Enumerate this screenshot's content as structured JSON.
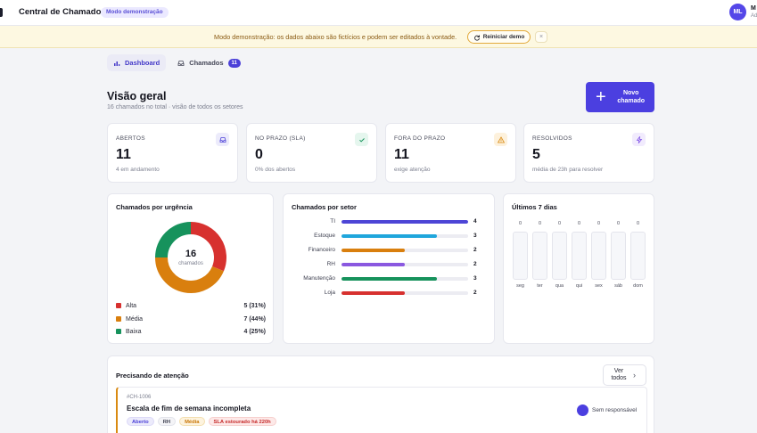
{
  "header": {
    "app_title": "Central de Chamados",
    "demo_badge": "Modo demonstração",
    "user_initials": "ML",
    "user_name": "M",
    "user_role": "Ad"
  },
  "banner": {
    "text": "Modo demonstração: os dados abaixo são fictícios e podem ser editados à vontade.",
    "reset_button": "Reiniciar demo",
    "close_glyph": "×"
  },
  "tabs": [
    {
      "label": "Dashboard",
      "icon": "chart-bar-icon",
      "active": true
    },
    {
      "label": "Chamados",
      "icon": "inbox-icon",
      "count": "11"
    }
  ],
  "page": {
    "title": "Visão geral",
    "subtitle": "16 chamados no total · visão de todos os setores",
    "new_button": "Novo\nchamado"
  },
  "stats": [
    {
      "label": "ABERTOS",
      "value": "11",
      "note": "4 em andamento",
      "icon": "inbox-icon",
      "icon_color": "#4b40d8",
      "icon_bg": "#ecebfb"
    },
    {
      "label": "NO PRAZO (SLA)",
      "value": "0",
      "note": "0% dos abertos",
      "icon": "check-icon",
      "icon_color": "#14935a",
      "icon_bg": "#e5f6ee"
    },
    {
      "label": "FORA DO PRAZO",
      "value": "11",
      "note": "exige atenção",
      "icon": "warning-icon",
      "icon_color": "#d98a11",
      "icon_bg": "#fdf1dc"
    },
    {
      "label": "RESOLVIDOS",
      "value": "5",
      "note": "média de 23h para resolver",
      "icon": "bolt-icon",
      "icon_color": "#7d4ee6",
      "icon_bg": "#f1ebfd"
    }
  ],
  "urgency": {
    "title": "Chamados por urgência",
    "total": "16",
    "total_caption": "chamados",
    "items": [
      {
        "label": "Alta",
        "value": 5,
        "display": "5 (31%)",
        "color": "#d7312f"
      },
      {
        "label": "Média",
        "value": 7,
        "display": "7 (44%)",
        "color": "#d97f0e"
      },
      {
        "label": "Baixa",
        "value": 4,
        "display": "4 (25%)",
        "color": "#16925c"
      }
    ]
  },
  "sectors": {
    "title": "Chamados por setor",
    "max": 4,
    "items": [
      {
        "label": "TI",
        "value": 4,
        "color": "#4d45d6"
      },
      {
        "label": "Estoque",
        "value": 3,
        "color": "#1fa6dc"
      },
      {
        "label": "Financeiro",
        "value": 2,
        "color": "#d97f0e"
      },
      {
        "label": "RH",
        "value": 2,
        "color": "#8a58e0"
      },
      {
        "label": "Manutenção",
        "value": 3,
        "color": "#16925c"
      },
      {
        "label": "Loja",
        "value": 2,
        "color": "#d7312f"
      }
    ]
  },
  "last7": {
    "title": "Últimos 7 dias",
    "days": [
      {
        "label": "seg",
        "value": 0
      },
      {
        "label": "ter",
        "value": 0
      },
      {
        "label": "qua",
        "value": 0
      },
      {
        "label": "qui",
        "value": 0
      },
      {
        "label": "sex",
        "value": 0
      },
      {
        "label": "sáb",
        "value": 0
      },
      {
        "label": "dom",
        "value": 0
      }
    ]
  },
  "attention": {
    "title": "Precisando de atenção",
    "see_all": "Ver\ntodos",
    "ticket": {
      "id": "#CH-1006",
      "title": "Escala de fim de semana incompleta",
      "assignee": "Sem responsável",
      "chips": [
        {
          "label": "Aberto",
          "color": "#4b40d8",
          "bg": "#ecebfb",
          "border": "#dcd9f7"
        },
        {
          "label": "RH",
          "color": "#3e4050",
          "bg": "#f4f4f7",
          "border": "#e2e3ea"
        },
        {
          "label": "Média",
          "color": "#c97708",
          "bg": "#fdf3de",
          "border": "#f3deaf"
        },
        {
          "label": "SLA estourado há 220h",
          "color": "#c62b2b",
          "bg": "#fde9e8",
          "border": "#f6cfcd"
        }
      ]
    }
  }
}
